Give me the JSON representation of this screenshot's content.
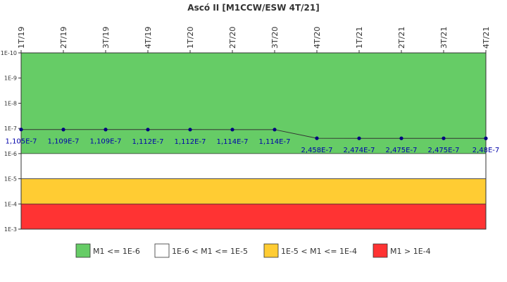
{
  "chart_data": {
    "type": "line",
    "title": "Ascó II [M1CCW/ESW 4T/21]",
    "y_scale": "log",
    "ylim": [
      0.0001,
      1e-10
    ],
    "y_axis_inverted": true,
    "y_ticks": [
      "1E-10",
      "1E-9",
      "1E-8",
      "1E-7",
      "1E-6",
      "1E-5",
      "1E-4",
      "1E-3"
    ],
    "y_tick_values": [
      1e-10,
      1e-09,
      1e-08,
      1e-07,
      1e-06,
      1e-05,
      0.0001,
      0.001
    ],
    "x_axis_position": "top",
    "categories": [
      "1T/19",
      "2T/19",
      "3T/19",
      "4T/19",
      "1T/20",
      "2T/20",
      "3T/20",
      "4T/20",
      "1T/21",
      "2T/21",
      "3T/21",
      "4T/21"
    ],
    "series": [
      {
        "values": [
          1.105e-07,
          1.109e-07,
          1.109e-07,
          1.112e-07,
          1.112e-07,
          1.114e-07,
          1.114e-07,
          2.458e-07,
          2.474e-07,
          2.475e-07,
          2.475e-07,
          2.48e-07
        ],
        "labels": [
          "1,105E-7",
          "1,109E-7",
          "1,109E-7",
          "1,112E-7",
          "1,112E-7",
          "1,114E-7",
          "1,114E-7",
          "2,458E-7",
          "2,474E-7",
          "2,475E-7",
          "2,475E-7",
          "2,48E-7"
        ],
        "color": "#000080"
      }
    ],
    "bands": [
      {
        "from": 1e-10,
        "to": 1e-06,
        "color": "#66cc66"
      },
      {
        "from": 1e-06,
        "to": 1e-05,
        "color": "#ffffff"
      },
      {
        "from": 1e-05,
        "to": 0.0001,
        "color": "#ffcc33"
      },
      {
        "from": 0.0001,
        "to": 0.001,
        "color": "#ff3333"
      }
    ],
    "legend": {
      "placement": "bottom",
      "entries": [
        {
          "label": "M1 <= 1E-6",
          "color": "#66cc66"
        },
        {
          "label": "1E-6 < M1 <= 1E-5",
          "color": "#ffffff"
        },
        {
          "label": "1E-5 < M1 <= 1E-4",
          "color": "#ffcc33"
        },
        {
          "label": "M1 > 1E-4",
          "color": "#ff3333"
        }
      ]
    },
    "grid": false
  }
}
